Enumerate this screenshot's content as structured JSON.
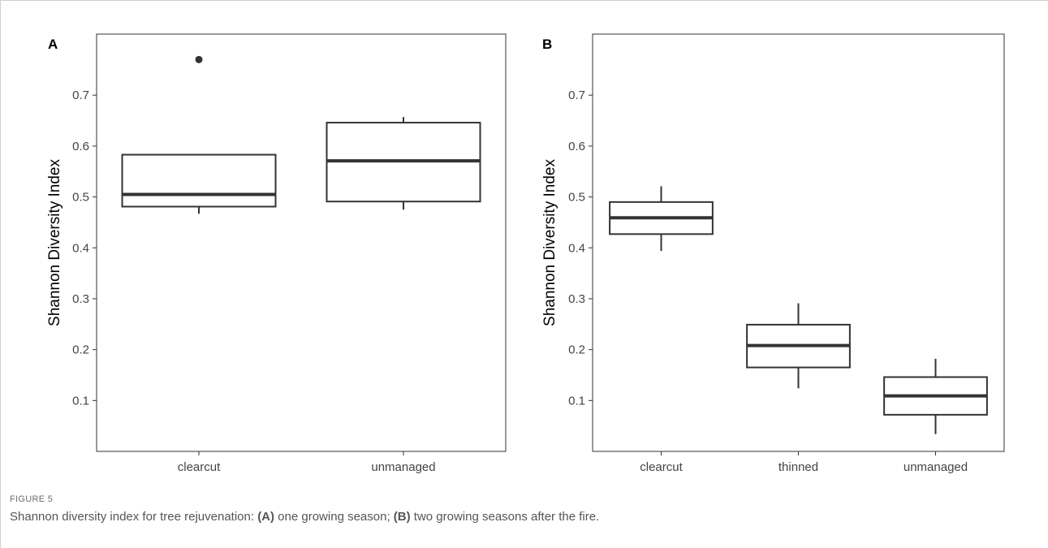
{
  "figure": {
    "label": "FIGURE 5",
    "caption_parts": [
      {
        "text": "Shannon diversity index for tree rejuvenation: ",
        "bold": false
      },
      {
        "text": "(A)",
        "bold": true
      },
      {
        "text": " one growing season; ",
        "bold": false
      },
      {
        "text": "(B)",
        "bold": true
      },
      {
        "text": " two growing seasons after the fire.",
        "bold": false
      }
    ]
  },
  "chart_data": [
    {
      "type": "box",
      "panel": "A",
      "title": "",
      "xlabel": "",
      "ylabel": "Shannon Diversity Index",
      "ylim": [
        0.0,
        0.82
      ],
      "yticks": [
        0.1,
        0.2,
        0.3,
        0.4,
        0.5,
        0.6,
        0.7
      ],
      "ytick_labels": [
        "0.1",
        "0.2",
        "0.3",
        "0.4",
        "0.5",
        "0.6",
        "0.7"
      ],
      "grid": false,
      "categories": [
        "clearcut",
        "unmanaged"
      ],
      "boxes": [
        {
          "category": "clearcut",
          "min": 0.467,
          "q1": 0.481,
          "median": 0.505,
          "q3": 0.583,
          "max": 0.583,
          "outliers": [
            0.77
          ]
        },
        {
          "category": "unmanaged",
          "min": 0.475,
          "q1": 0.491,
          "median": 0.571,
          "q3": 0.646,
          "max": 0.657,
          "outliers": []
        }
      ]
    },
    {
      "type": "box",
      "panel": "B",
      "title": "",
      "xlabel": "",
      "ylabel": "Shannon Diversity Index",
      "ylim": [
        0.0,
        0.82
      ],
      "yticks": [
        0.1,
        0.2,
        0.3,
        0.4,
        0.5,
        0.6,
        0.7
      ],
      "ytick_labels": [
        "0.1",
        "0.2",
        "0.3",
        "0.4",
        "0.5",
        "0.6",
        "0.7"
      ],
      "grid": false,
      "categories": [
        "clearcut",
        "thinned",
        "unmanaged"
      ],
      "boxes": [
        {
          "category": "clearcut",
          "min": 0.394,
          "q1": 0.427,
          "median": 0.459,
          "q3": 0.49,
          "max": 0.521,
          "outliers": []
        },
        {
          "category": "thinned",
          "min": 0.124,
          "q1": 0.165,
          "median": 0.208,
          "q3": 0.249,
          "max": 0.291,
          "outliers": []
        },
        {
          "category": "unmanaged",
          "min": 0.034,
          "q1": 0.072,
          "median": 0.109,
          "q3": 0.146,
          "max": 0.182,
          "outliers": []
        }
      ]
    }
  ]
}
